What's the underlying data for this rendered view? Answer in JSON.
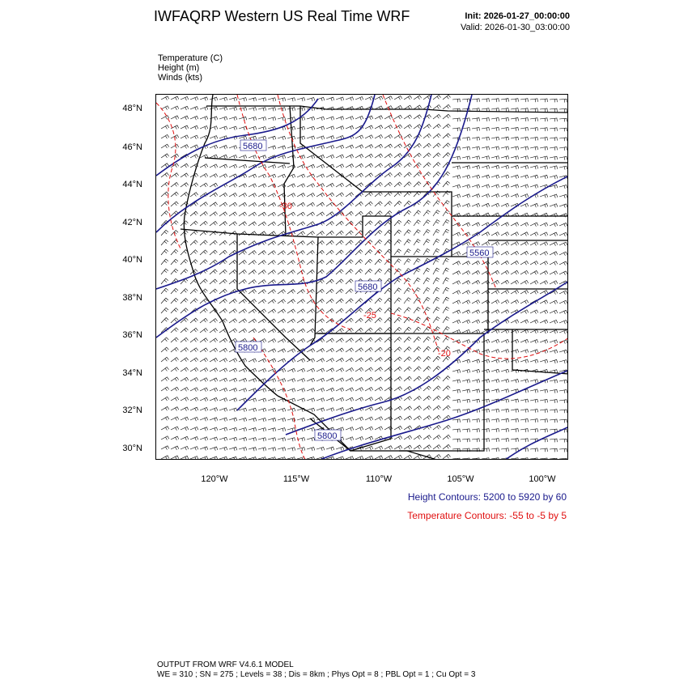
{
  "header": {
    "title": "IWFAQRP Western US Real Time WRF",
    "init": "Init: 2026-01-27_00:00:00",
    "valid": "Valid: 2026-01-30_03:00:00"
  },
  "variables": [
    "Temperature   (C)",
    "Height   (m)",
    "Winds   (kts)"
  ],
  "axes": {
    "lat_labels": [
      "48°N",
      "46°N",
      "44°N",
      "42°N",
      "40°N",
      "38°N",
      "36°N",
      "34°N",
      "32°N",
      "30°N"
    ],
    "lon_labels": [
      "120°W",
      "115°W",
      "110°W",
      "105°W",
      "100°W"
    ]
  },
  "contour_labels": {
    "height": [
      "5680",
      "5560",
      "5680",
      "5800",
      "5800"
    ],
    "temperature": [
      "-30",
      "-25",
      "-20"
    ]
  },
  "legend": {
    "height": "Height Contours: 5200 to 5920 by 60",
    "temperature": "Temperature Contours: -55 to -5 by 5"
  },
  "footer": {
    "line1": "OUTPUT FROM WRF V4.6.1 MODEL",
    "line2": "WE = 310 ; SN = 275 ; Levels = 38 ; Dis = 8km ; Phys Opt = 8 ; PBL Opt = 1 ; Cu Opt = 3"
  },
  "colors": {
    "height_contour": "#1a1a8c",
    "temperature_contour": "#e01010",
    "borders": "#000000"
  }
}
